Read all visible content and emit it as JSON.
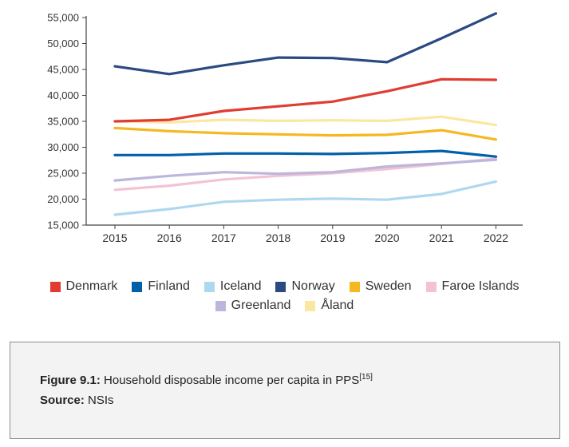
{
  "chart_data": {
    "type": "line",
    "title": "",
    "xlabel": "",
    "ylabel": "",
    "x": [
      "2015",
      "2016",
      "2017",
      "2018",
      "2019",
      "2020",
      "2021",
      "2022"
    ],
    "yticks": [
      "15,000",
      "20,000",
      "25,000",
      "30,000",
      "35,000",
      "40,000",
      "45,000",
      "50,000",
      "55,000"
    ],
    "ylim": [
      15000,
      55000
    ],
    "grid": false,
    "legend_position": "bottom",
    "series": [
      {
        "name": "Denmark",
        "color": "#e03c31",
        "values": [
          35000,
          35300,
          37000,
          37900,
          38800,
          40800,
          43100,
          43000
        ]
      },
      {
        "name": "Finland",
        "color": "#0060aa",
        "values": [
          28500,
          28500,
          28800,
          28800,
          28700,
          28900,
          29300,
          28200
        ]
      },
      {
        "name": "Iceland",
        "color": "#aed8f0",
        "values": [
          17000,
          18100,
          19500,
          19900,
          20100,
          19900,
          21000,
          23400
        ]
      },
      {
        "name": "Norway",
        "color": "#2b4a82",
        "values": [
          45600,
          44100,
          45800,
          47300,
          47200,
          46400,
          51000,
          55800
        ]
      },
      {
        "name": "Sweden",
        "color": "#f5b820",
        "values": [
          33700,
          33100,
          32700,
          32500,
          32300,
          32400,
          33300,
          31500
        ]
      },
      {
        "name": "Faroe Islands",
        "color": "#f4c3d3",
        "values": [
          21800,
          22600,
          23800,
          24500,
          25000,
          25800,
          26800,
          27800
        ]
      },
      {
        "name": "Greenland",
        "color": "#bcb6dc",
        "values": [
          23600,
          24500,
          25200,
          24900,
          25200,
          26300,
          26900,
          27600
        ]
      },
      {
        "name": "Åland",
        "color": "#fbe7a0",
        "values": [
          35000,
          34800,
          35300,
          35100,
          35200,
          35100,
          35900,
          34300
        ]
      }
    ]
  },
  "legend_row1": [
    "Denmark",
    "Finland",
    "Iceland",
    "Norway",
    "Sweden",
    "Faroe Islands"
  ],
  "legend_row2": [
    "Greenland",
    "Åland"
  ],
  "caption": {
    "figure_label": "Figure 9.1:",
    "figure_text": " Household disposable income per capita in PPS",
    "figure_ref": "[15]",
    "source_label": "Source:",
    "source_text": " NSIs"
  }
}
